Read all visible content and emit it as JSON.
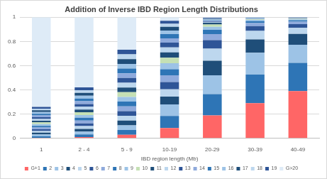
{
  "chart_data": {
    "type": "bar",
    "title": "Addition of Inverse IBD Region Length Distributions",
    "x_label": "IBD region length (Mb)",
    "categories": [
      "1",
      "2 - 4",
      "5 - 9",
      "10-19",
      "20-29",
      "30-39",
      "40-49"
    ],
    "stacked": true,
    "grid": true,
    "legend": "bottom",
    "ylim": [
      0,
      1
    ],
    "yticks": [
      0,
      0.2,
      0.4,
      0.6,
      0.8,
      1
    ],
    "series": [
      {
        "name": "G+1",
        "color": "#ff6666",
        "values": [
          0.004,
          0.01,
          0.03,
          0.085,
          0.19,
          0.29,
          0.39
        ]
      },
      {
        "name": "2",
        "color": "#2e75b6",
        "values": [
          0.0142,
          0.0228,
          0.039,
          0.1,
          0.175,
          0.237,
          0.2325
        ]
      },
      {
        "name": "3",
        "color": "#9dc3e6",
        "values": [
          0.0142,
          0.0228,
          0.039,
          0.095,
          0.155,
          0.18,
          0.15
        ]
      },
      {
        "name": "4",
        "color": "#1f4e79",
        "values": [
          0.0142,
          0.0228,
          0.039,
          0.065,
          0.12,
          0.11,
          0.09
        ]
      },
      {
        "name": "5",
        "color": "#bdd7ee",
        "values": [
          0.0142,
          0.0228,
          0.039,
          0.06,
          0.1,
          0.07,
          0.05
        ]
      },
      {
        "name": "6",
        "color": "#2f5597",
        "values": [
          0.0142,
          0.0228,
          0.039,
          0.06,
          0.07,
          0.04,
          0.03
        ]
      },
      {
        "name": "7",
        "color": "#8faadc",
        "values": [
          0.0142,
          0.0228,
          0.039,
          0.055,
          0.05,
          0.025,
          0.02
        ]
      },
      {
        "name": "8",
        "color": "#2e75b6",
        "values": [
          0.0142,
          0.0228,
          0.039,
          0.05,
          0.035,
          0.015,
          0.012
        ]
      },
      {
        "name": "9",
        "color": "#9dc3e6",
        "values": [
          0.0142,
          0.0228,
          0.039,
          0.05,
          0.025,
          0.01,
          0.008
        ]
      },
      {
        "name": "10",
        "color": "#c5e0b4",
        "values": [
          0.0142,
          0.0228,
          0.039,
          0.045,
          0.02,
          0.005,
          0.004
        ]
      },
      {
        "name": "11",
        "color": "#1f4e79",
        "values": [
          0.0142,
          0.0228,
          0.039,
          0.045,
          0.015,
          0.002,
          0.0015
        ]
      },
      {
        "name": "12",
        "color": "#bdd7ee",
        "values": [
          0.0142,
          0.0228,
          0.039,
          0.04,
          0.005,
          0.002,
          0.0015
        ]
      },
      {
        "name": "13",
        "color": "#2f5597",
        "values": [
          0.0142,
          0.0228,
          0.039,
          0.04,
          0.005,
          0.002,
          0.0015
        ]
      },
      {
        "name": "14",
        "color": "#8faadc",
        "values": [
          0.0142,
          0.0228,
          0.039,
          0.035,
          0.005,
          0.002,
          0.0015
        ]
      },
      {
        "name": "15",
        "color": "#2e75b6",
        "values": [
          0.0142,
          0.0228,
          0.039,
          0.035,
          0.005,
          0.002,
          0.0015
        ]
      },
      {
        "name": "16",
        "color": "#9dc3e6",
        "values": [
          0.0142,
          0.0228,
          0.039,
          0.03,
          0.005,
          0.002,
          0.0015
        ]
      },
      {
        "name": "17",
        "color": "#1f4e79",
        "values": [
          0.0142,
          0.0228,
          0.039,
          0.03,
          0.005,
          0.002,
          0.0015
        ]
      },
      {
        "name": "18",
        "color": "#bdd7ee",
        "values": [
          0.0142,
          0.0228,
          0.039,
          0.025,
          0.005,
          0.002,
          0.0015
        ]
      },
      {
        "name": "19",
        "color": "#2f5597",
        "values": [
          0.0142,
          0.0228,
          0.039,
          0.025,
          0.005,
          0.002,
          0.0015
        ]
      },
      {
        "name": "G>20",
        "color": "#deebf7",
        "values": [
          0.7404,
          0.5796,
          0.268,
          0.03,
          0.005,
          0,
          0
        ]
      }
    ]
  }
}
